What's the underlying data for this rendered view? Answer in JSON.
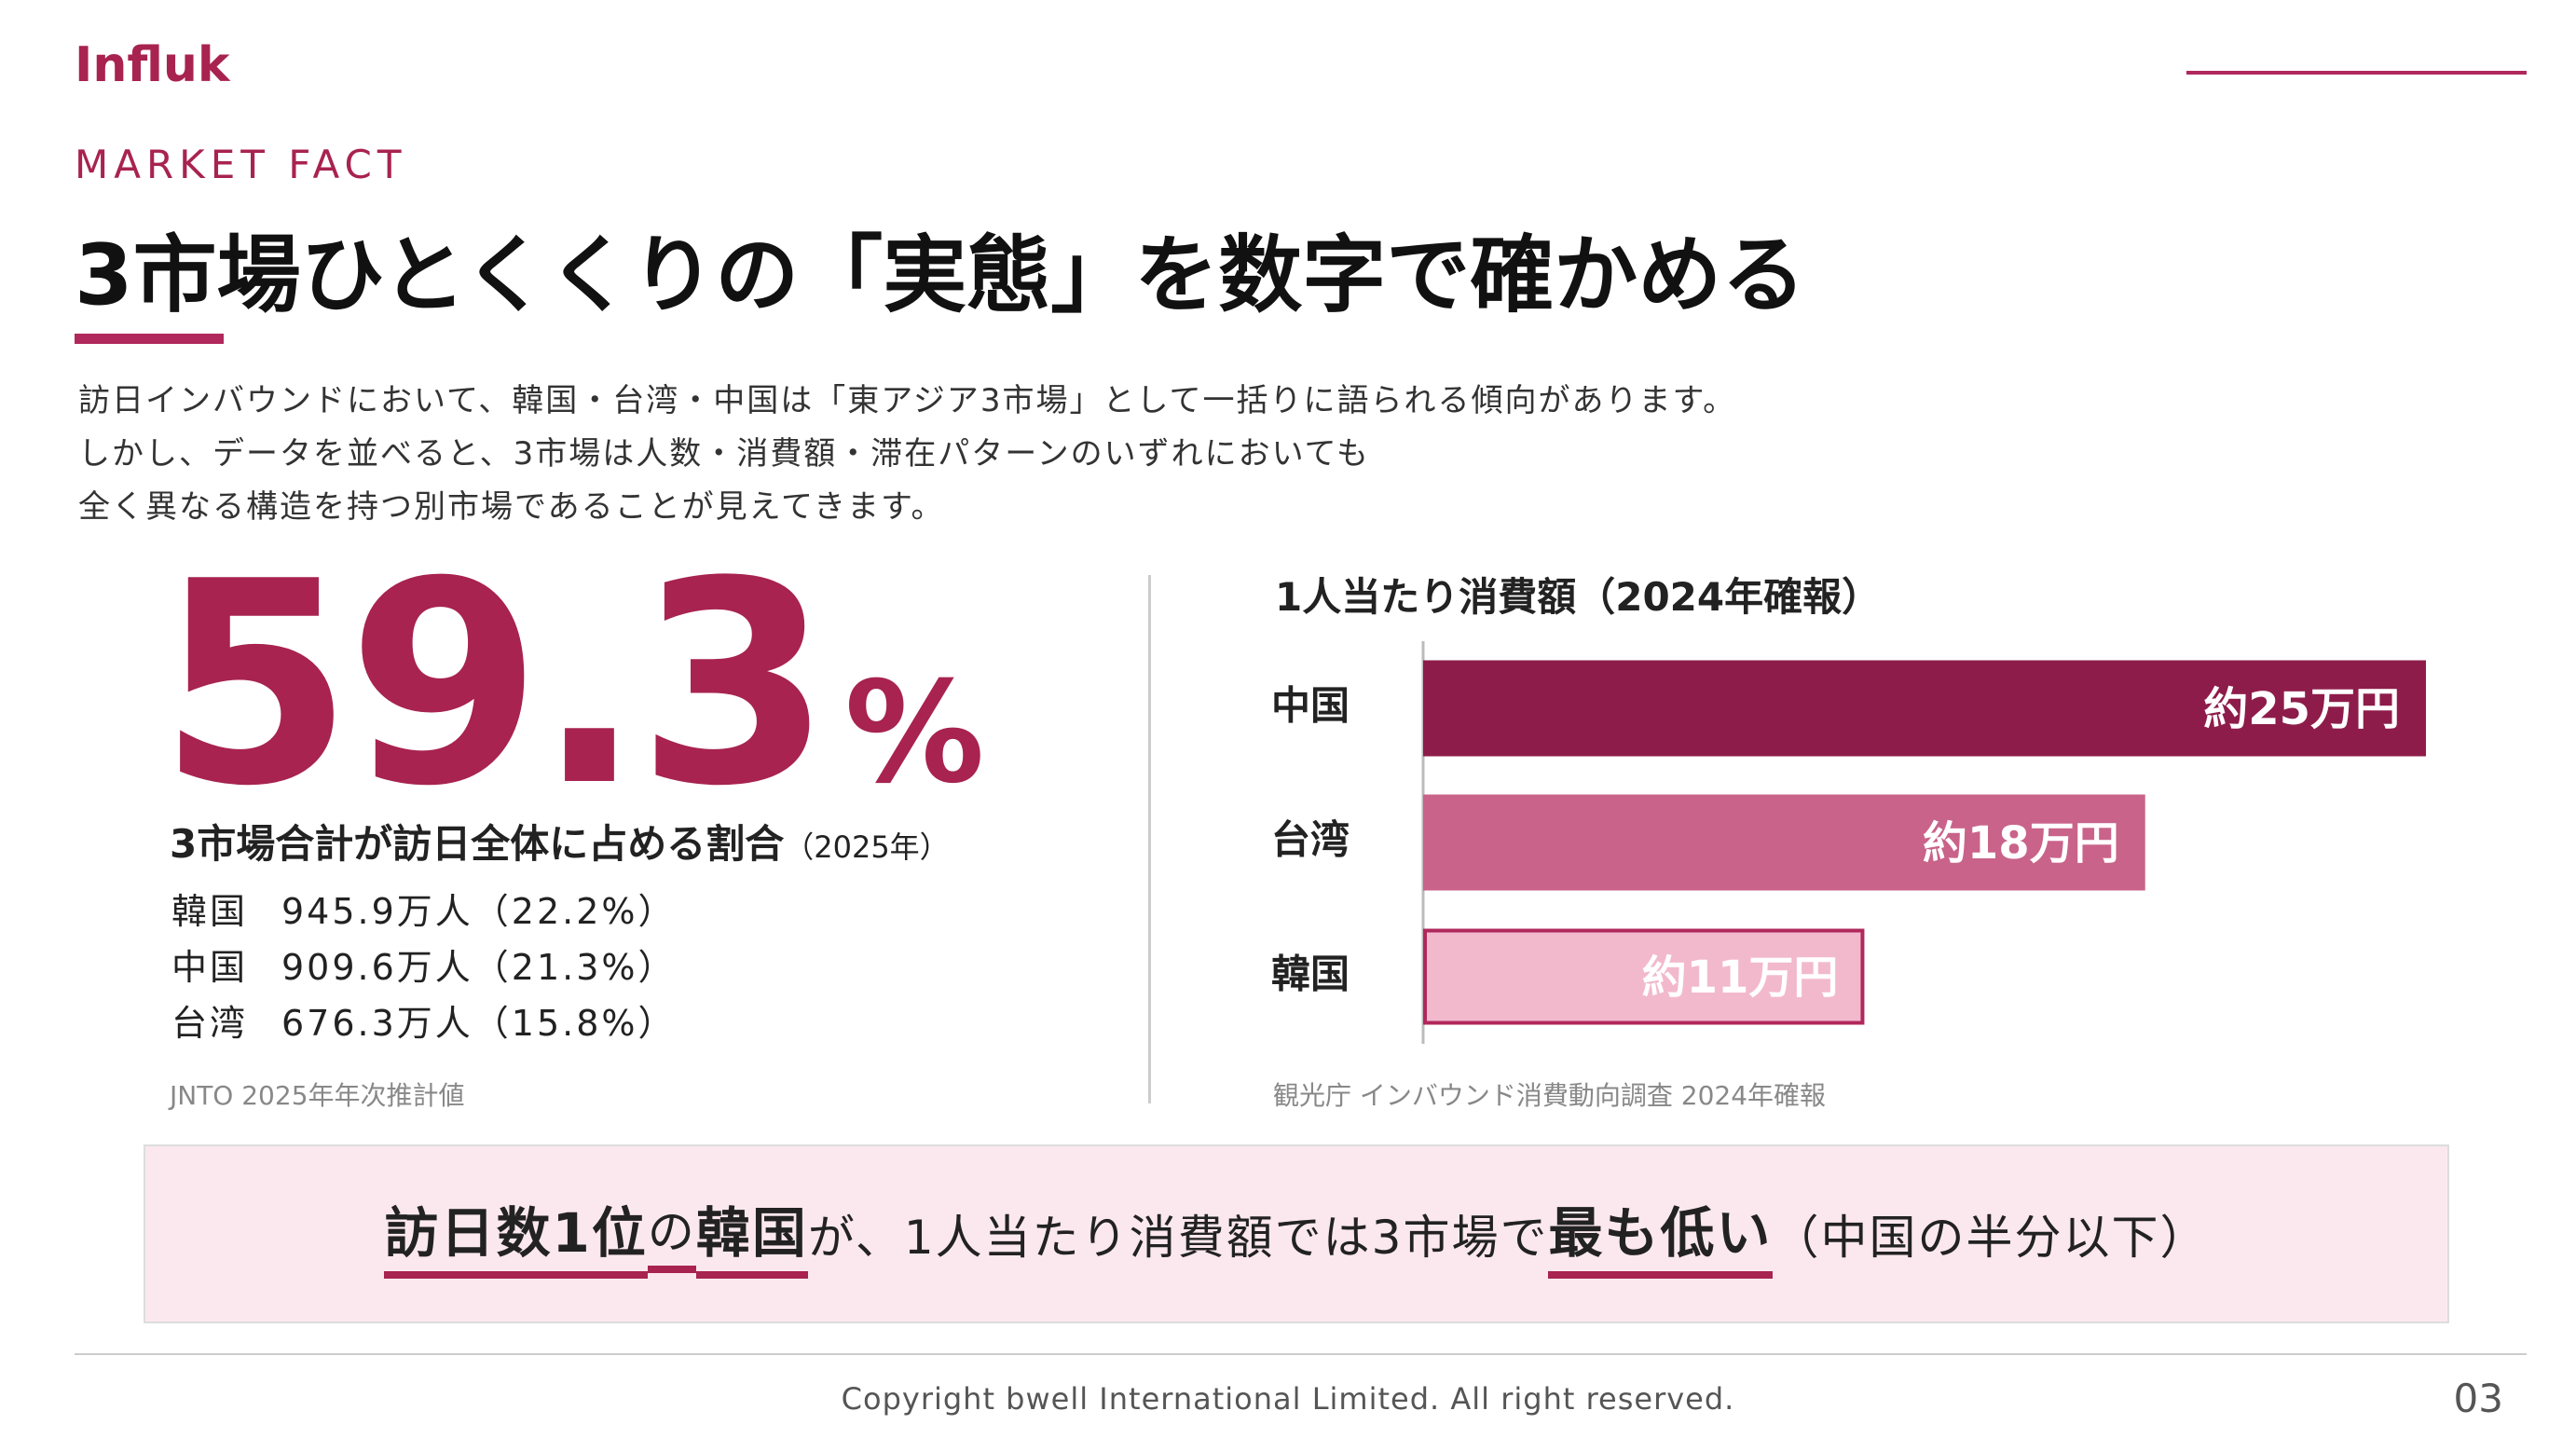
{
  "header": {
    "logo": "Influk",
    "kicker": "MARKET FACT",
    "title": "3市場ひとくくりの「実態」を数字で確かめる"
  },
  "body": [
    "訪日インバウンドにおいて、韓国・台湾・中国は「東アジア3市場」として一括りに語られる傾向があります。",
    "しかし、データを並べると、3市場は人数・消費額・滞在パターンのいずれにおいても",
    "全く異なる構造を持つ別市場であることが見えてきます。"
  ],
  "stat": {
    "value": "59.3",
    "unit": "%",
    "caption": "3市場合計が訪日全体に占める割合",
    "caption_note": "（2025年）",
    "rows": [
      [
        "韓国",
        "945.9万人（22.2%）"
      ],
      [
        "中国",
        "909.6万人（21.3%）"
      ],
      [
        "台湾",
        "676.3万人（15.8%）"
      ]
    ],
    "source": "JNTO 2025年年次推計値"
  },
  "chart_data": {
    "type": "bar",
    "orientation": "horizontal",
    "title": "1人当たり消費額（2024年確報）",
    "categories": [
      "中国",
      "台湾",
      "韓国"
    ],
    "values": [
      25,
      18,
      11
    ],
    "value_labels": [
      "約25万円",
      "約18万円",
      "約11万円"
    ],
    "colors": [
      "#8e1c4a",
      "#c9638a",
      "#f2b9cd"
    ],
    "edge_colors": [
      null,
      null,
      "#b0285c"
    ],
    "xlim": [
      0,
      25
    ],
    "source": "観光庁 インバウンド消費動向調査 2024年確報"
  },
  "callout": {
    "parts": [
      {
        "text": "訪日数1位",
        "strong": true,
        "underline": true
      },
      {
        "text": "の",
        "strong": false,
        "underline": true
      },
      {
        "text": "韓国",
        "strong": true,
        "underline": true
      },
      {
        "text": "が、1人当たり消費額では3市場で",
        "strong": false,
        "underline": false
      },
      {
        "text": "最も低い",
        "strong": true,
        "underline": true
      },
      {
        "text": "（中国の半分以下）",
        "strong": false,
        "underline": false
      }
    ]
  },
  "footer": {
    "copyright": "Copyright bwell International Limited. All right reserved.",
    "page": "03"
  }
}
